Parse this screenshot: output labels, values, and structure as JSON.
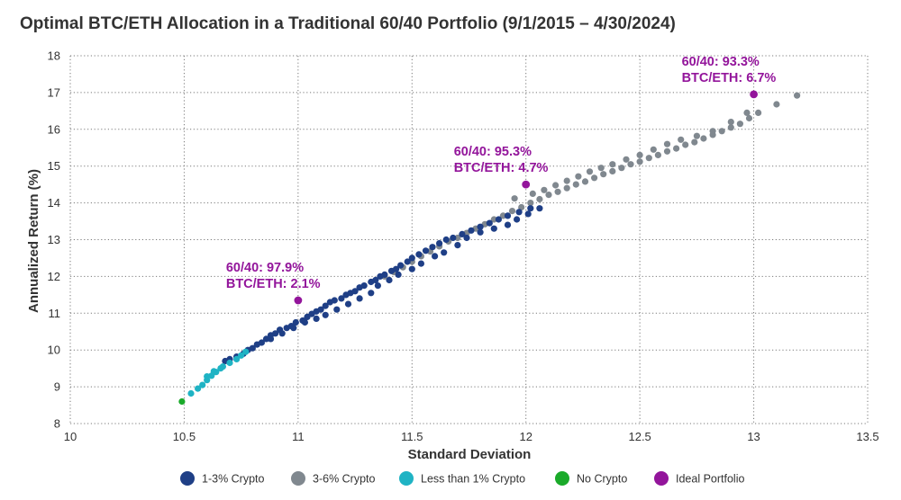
{
  "chart_data": {
    "type": "scatter",
    "title": "Optimal BTC/ETH Allocation in a Traditional 60/40 Portfolio (9/1/2015 – 4/30/2024)",
    "xlabel": "Standard Deviation",
    "ylabel": "Annualized Return (%)",
    "xlim": [
      10,
      13.5
    ],
    "ylim": [
      8,
      18
    ],
    "xticks": [
      "10",
      "10.5",
      "11",
      "11.5",
      "12",
      "12.5",
      "13",
      "13.5"
    ],
    "yticks": [
      "8",
      "9",
      "10",
      "11",
      "12",
      "13",
      "14",
      "15",
      "16",
      "17",
      "18"
    ],
    "grid": "dotted",
    "legend_position": "bottom",
    "series": [
      {
        "name": "1-3% Crypto",
        "color": "#1f3f86",
        "points": [
          [
            10.68,
            9.7
          ],
          [
            10.7,
            9.75
          ],
          [
            10.73,
            9.82
          ],
          [
            10.76,
            9.9
          ],
          [
            10.78,
            10.0
          ],
          [
            10.8,
            10.05
          ],
          [
            10.82,
            10.15
          ],
          [
            10.84,
            10.2
          ],
          [
            10.86,
            10.3
          ],
          [
            10.88,
            10.4
          ],
          [
            10.9,
            10.45
          ],
          [
            10.92,
            10.55
          ],
          [
            10.95,
            10.6
          ],
          [
            10.97,
            10.65
          ],
          [
            10.99,
            10.75
          ],
          [
            11.02,
            10.8
          ],
          [
            11.04,
            10.9
          ],
          [
            11.06,
            10.98
          ],
          [
            11.08,
            11.05
          ],
          [
            11.1,
            11.1
          ],
          [
            11.12,
            11.2
          ],
          [
            11.14,
            11.3
          ],
          [
            11.16,
            11.35
          ],
          [
            11.19,
            11.4
          ],
          [
            11.21,
            11.5
          ],
          [
            11.23,
            11.55
          ],
          [
            11.25,
            11.6
          ],
          [
            11.27,
            11.7
          ],
          [
            11.29,
            11.75
          ],
          [
            11.32,
            11.85
          ],
          [
            11.34,
            11.9
          ],
          [
            11.36,
            12.0
          ],
          [
            11.38,
            12.05
          ],
          [
            11.41,
            12.15
          ],
          [
            11.43,
            12.2
          ],
          [
            11.45,
            12.3
          ],
          [
            11.48,
            12.4
          ],
          [
            11.5,
            12.5
          ],
          [
            11.53,
            12.6
          ],
          [
            11.56,
            12.7
          ],
          [
            11.59,
            12.8
          ],
          [
            11.62,
            12.9
          ],
          [
            11.65,
            13.0
          ],
          [
            11.68,
            13.05
          ],
          [
            11.72,
            13.15
          ],
          [
            11.76,
            13.25
          ],
          [
            11.8,
            13.35
          ],
          [
            11.84,
            13.45
          ],
          [
            11.88,
            13.55
          ],
          [
            11.92,
            13.65
          ],
          [
            11.97,
            13.75
          ],
          [
            12.02,
            13.85
          ],
          [
            10.88,
            10.3
          ],
          [
            10.93,
            10.45
          ],
          [
            10.98,
            10.6
          ],
          [
            11.03,
            10.75
          ],
          [
            11.08,
            10.85
          ],
          [
            11.12,
            10.95
          ],
          [
            11.17,
            11.1
          ],
          [
            11.22,
            11.25
          ],
          [
            11.27,
            11.4
          ],
          [
            11.32,
            11.55
          ],
          [
            11.35,
            11.75
          ],
          [
            11.4,
            11.9
          ],
          [
            11.44,
            12.05
          ],
          [
            11.5,
            12.2
          ],
          [
            11.54,
            12.35
          ],
          [
            11.6,
            12.55
          ],
          [
            11.64,
            12.65
          ],
          [
            11.7,
            12.85
          ],
          [
            11.74,
            13.05
          ],
          [
            11.8,
            13.2
          ],
          [
            11.86,
            13.3
          ],
          [
            11.92,
            13.4
          ],
          [
            11.96,
            13.55
          ],
          [
            12.01,
            13.7
          ],
          [
            12.06,
            13.85
          ]
        ]
      },
      {
        "name": "3-6% Crypto",
        "color": "#80888f",
        "points": [
          [
            11.38,
            12.0
          ],
          [
            11.42,
            12.12
          ],
          [
            11.46,
            12.25
          ],
          [
            11.5,
            12.4
          ],
          [
            11.54,
            12.55
          ],
          [
            11.58,
            12.68
          ],
          [
            11.62,
            12.82
          ],
          [
            11.66,
            12.95
          ],
          [
            11.7,
            13.05
          ],
          [
            11.74,
            13.18
          ],
          [
            11.78,
            13.3
          ],
          [
            11.82,
            13.42
          ],
          [
            11.86,
            13.55
          ],
          [
            11.9,
            13.65
          ],
          [
            11.94,
            13.78
          ],
          [
            11.98,
            13.88
          ],
          [
            12.02,
            14.0
          ],
          [
            12.06,
            14.1
          ],
          [
            12.1,
            14.22
          ],
          [
            12.14,
            14.3
          ],
          [
            12.18,
            14.4
          ],
          [
            12.22,
            14.5
          ],
          [
            12.26,
            14.58
          ],
          [
            12.3,
            14.68
          ],
          [
            12.34,
            14.78
          ],
          [
            12.38,
            14.86
          ],
          [
            12.42,
            14.95
          ],
          [
            12.46,
            15.05
          ],
          [
            12.5,
            15.12
          ],
          [
            12.54,
            15.22
          ],
          [
            12.58,
            15.3
          ],
          [
            12.62,
            15.4
          ],
          [
            12.66,
            15.48
          ],
          [
            12.7,
            15.58
          ],
          [
            12.74,
            15.65
          ],
          [
            12.78,
            15.75
          ],
          [
            12.82,
            15.85
          ],
          [
            12.86,
            15.95
          ],
          [
            12.9,
            16.05
          ],
          [
            12.94,
            16.15
          ],
          [
            12.98,
            16.3
          ],
          [
            13.02,
            16.45
          ],
          [
            13.1,
            16.68
          ],
          [
            13.19,
            16.92
          ],
          [
            11.95,
            14.12
          ],
          [
            12.03,
            14.25
          ],
          [
            12.08,
            14.35
          ],
          [
            12.13,
            14.48
          ],
          [
            12.18,
            14.6
          ],
          [
            12.23,
            14.72
          ],
          [
            12.28,
            14.85
          ],
          [
            12.33,
            14.95
          ],
          [
            12.38,
            15.05
          ],
          [
            12.44,
            15.18
          ],
          [
            12.5,
            15.3
          ],
          [
            12.56,
            15.45
          ],
          [
            12.62,
            15.6
          ],
          [
            12.68,
            15.72
          ],
          [
            12.75,
            15.82
          ],
          [
            12.82,
            15.95
          ],
          [
            12.9,
            16.2
          ],
          [
            12.97,
            16.45
          ]
        ]
      },
      {
        "name": "Less than 1% Crypto",
        "color": "#1fb3c4",
        "points": [
          [
            10.53,
            8.82
          ],
          [
            10.56,
            8.95
          ],
          [
            10.58,
            9.05
          ],
          [
            10.6,
            9.18
          ],
          [
            10.62,
            9.3
          ],
          [
            10.64,
            9.4
          ],
          [
            10.66,
            9.5
          ],
          [
            10.67,
            9.55
          ],
          [
            10.7,
            9.65
          ],
          [
            10.73,
            9.75
          ],
          [
            10.75,
            9.85
          ],
          [
            10.77,
            9.95
          ],
          [
            10.6,
            9.28
          ],
          [
            10.63,
            9.42
          ]
        ]
      },
      {
        "name": "No Crypto",
        "color": "#1aaa2a",
        "points": [
          [
            10.49,
            8.6
          ]
        ]
      },
      {
        "name": "Ideal Portfolio",
        "color": "#93159b",
        "points": [
          [
            11.0,
            11.35
          ],
          [
            12.0,
            14.5
          ],
          [
            13.0,
            16.95
          ]
        ]
      }
    ],
    "annotations": [
      {
        "line1": "60/40: 97.9%",
        "line2": "BTC/ETH: 2.1%",
        "x": 11.0,
        "y": 11.35
      },
      {
        "line1": "60/40: 95.3%",
        "line2": "BTC/ETH: 4.7%",
        "x": 12.0,
        "y": 14.5
      },
      {
        "line1": "60/40: 93.3%",
        "line2": "BTC/ETH: 6.7%",
        "x": 13.0,
        "y": 16.95
      }
    ]
  }
}
